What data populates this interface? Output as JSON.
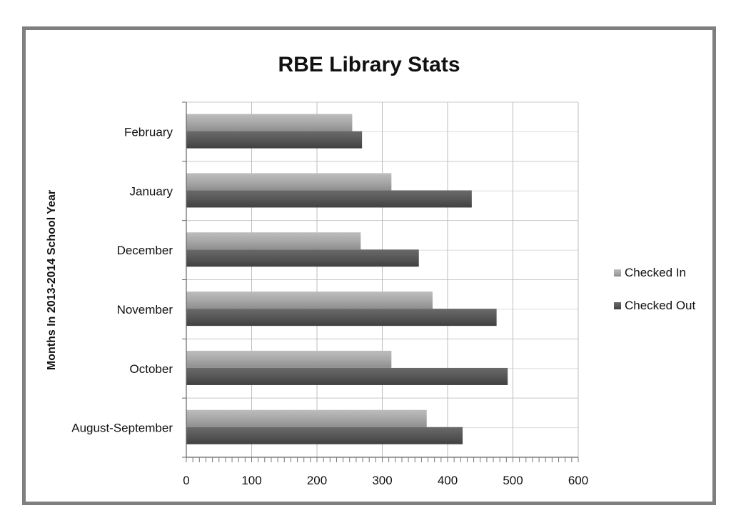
{
  "chart_data": {
    "type": "bar",
    "orientation": "horizontal",
    "title": "RBE Library Stats",
    "ylabel": "Months In 2013-2014 School Year",
    "xlabel": "",
    "categories": [
      "August-September",
      "October",
      "November",
      "December",
      "January",
      "February"
    ],
    "series": [
      {
        "name": "Checked In",
        "color": "#a6a6a6",
        "values": [
          368,
          314,
          377,
          267,
          314,
          254
        ]
      },
      {
        "name": "Checked Out",
        "color": "#595959",
        "values": [
          423,
          492,
          475,
          356,
          437,
          269
        ]
      }
    ],
    "xlim": [
      0,
      600
    ],
    "xticks": [
      0,
      100,
      200,
      300,
      400,
      500,
      600
    ],
    "grid": true,
    "legend_position": "right"
  }
}
